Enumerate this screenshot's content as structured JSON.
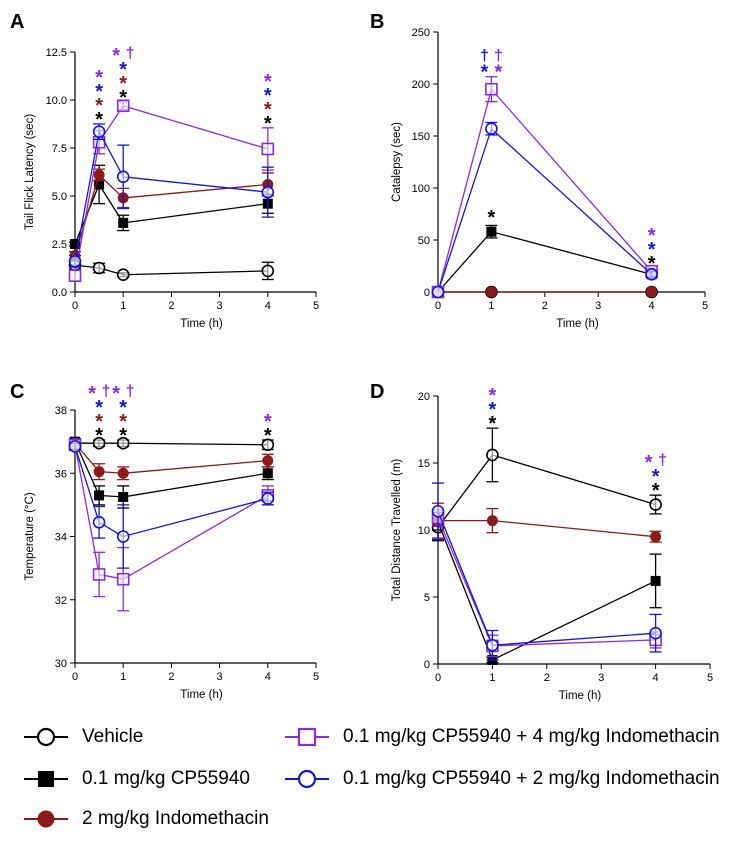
{
  "colors": {
    "vehicle": "#000000",
    "cp": "#000000",
    "indo": "#8b1a1a",
    "cp_indo4": "#8a2be2",
    "cp_indo2": "#1515d8"
  },
  "legend": [
    {
      "key": "vehicle",
      "label": "Vehicle",
      "marker": "open-circle"
    },
    {
      "key": "cp",
      "label": "0.1 mg/kg CP55940",
      "marker": "filled-square"
    },
    {
      "key": "indo",
      "label": "2 mg/kg Indomethacin",
      "marker": "filled-circle"
    },
    {
      "key": "cp_indo4",
      "label": "0.1 mg/kg CP55940 + 4 mg/kg Indomethacin",
      "marker": "open-square"
    },
    {
      "key": "cp_indo2",
      "label": "0.1 mg/kg CP55940 + 2 mg/kg Indomethacin",
      "marker": "open-circle"
    }
  ],
  "chart_data": [
    {
      "panel": "A",
      "type": "line",
      "xlabel": "Time (h)",
      "ylabel": "Tail Flick Latency (sec)",
      "xlim": [
        0,
        5
      ],
      "ylim": [
        0,
        12.5
      ],
      "xticks": [
        "0",
        "1",
        "2",
        "3",
        "4",
        "5"
      ],
      "yticks": [
        "0.0",
        "2.5",
        "5.0",
        "7.5",
        "10.0",
        "12.5"
      ],
      "x": [
        0,
        0.5,
        1,
        4
      ],
      "series": [
        {
          "key": "vehicle",
          "values": [
            1.4,
            1.25,
            0.9,
            1.1
          ],
          "errors": [
            0.2,
            0.25,
            0.1,
            0.45
          ]
        },
        {
          "key": "cp",
          "values": [
            2.5,
            5.6,
            3.6,
            4.6
          ],
          "errors": [
            0.1,
            1.0,
            0.4,
            0.5
          ]
        },
        {
          "key": "indo",
          "values": [
            1.9,
            6.1,
            4.9,
            5.6
          ],
          "errors": [
            0.2,
            0.3,
            0.5,
            0.6
          ]
        },
        {
          "key": "cp_indo4",
          "values": [
            0.85,
            7.8,
            9.7,
            7.45
          ],
          "errors": [
            0.3,
            0.6,
            0.2,
            1.1
          ]
        },
        {
          "key": "cp_indo2",
          "values": [
            1.6,
            8.35,
            6.0,
            5.2
          ],
          "errors": [
            0.3,
            0.4,
            1.65,
            1.3
          ]
        }
      ],
      "annotations": [
        {
          "x": 0.5,
          "symbols": [
            [
              "*",
              "cp_indo4"
            ],
            [
              "*",
              "cp_indo2"
            ],
            [
              "*",
              "indo"
            ],
            [
              "*",
              "cp"
            ]
          ]
        },
        {
          "x": 1,
          "symbols": [
            [
              "*",
              "cp_indo4",
              "†"
            ],
            [
              "*",
              "cp_indo2"
            ],
            [
              "*",
              "indo"
            ],
            [
              "*",
              "cp"
            ]
          ]
        },
        {
          "x": 4,
          "symbols": [
            [
              "*",
              "cp_indo4"
            ],
            [
              "*",
              "cp_indo2"
            ],
            [
              "*",
              "indo"
            ],
            [
              "*",
              "cp"
            ]
          ]
        }
      ]
    },
    {
      "panel": "B",
      "type": "line",
      "xlabel": "Time (h)",
      "ylabel": "Catalepsy (sec)",
      "xlim": [
        0,
        5
      ],
      "ylim": [
        0,
        250
      ],
      "xticks": [
        "0",
        "1",
        "2",
        "3",
        "4",
        "5"
      ],
      "yticks": [
        "0",
        "50",
        "100",
        "150",
        "200",
        "250"
      ],
      "x": [
        0,
        1,
        4
      ],
      "series": [
        {
          "key": "vehicle",
          "values": [
            0,
            0,
            0
          ],
          "errors": [
            0,
            0,
            0
          ]
        },
        {
          "key": "cp",
          "values": [
            0,
            58,
            17
          ],
          "errors": [
            0,
            6,
            3
          ]
        },
        {
          "key": "indo",
          "values": [
            0,
            0,
            0
          ],
          "errors": [
            0,
            0,
            0
          ]
        },
        {
          "key": "cp_indo4",
          "values": [
            0,
            195,
            20
          ],
          "errors": [
            0,
            12,
            3
          ]
        },
        {
          "key": "cp_indo2",
          "values": [
            0,
            157,
            17
          ],
          "errors": [
            0,
            6,
            3
          ]
        }
      ],
      "annotations": [
        {
          "x": 1,
          "symbols": [
            [
              "†",
              "cp_indo2",
              "†",
              "cp_indo4"
            ],
            [
              "*",
              "cp_indo2",
              "*",
              "cp_indo4"
            ]
          ]
        },
        {
          "x": 1,
          "symbols": [
            [
              "*",
              "cp"
            ]
          ],
          "y": 75
        },
        {
          "x": 4,
          "symbols": [
            [
              "*",
              "cp_indo4"
            ],
            [
              "*",
              "cp_indo2"
            ],
            [
              "*",
              "cp"
            ]
          ]
        }
      ]
    },
    {
      "panel": "C",
      "type": "line",
      "xlabel": "Time (h)",
      "ylabel": "Temperature (°C)",
      "xlim": [
        0,
        5
      ],
      "ylim": [
        30,
        38
      ],
      "xticks": [
        "0",
        "1",
        "2",
        "3",
        "4",
        "5"
      ],
      "yticks": [
        "30",
        "32",
        "34",
        "36",
        "38"
      ],
      "x": [
        0,
        0.5,
        1,
        4
      ],
      "series": [
        {
          "key": "vehicle",
          "values": [
            36.95,
            36.95,
            36.95,
            36.9
          ],
          "errors": [
            0.1,
            0.1,
            0.1,
            0.15
          ]
        },
        {
          "key": "cp",
          "values": [
            37.0,
            35.3,
            35.25,
            36.0
          ],
          "errors": [
            0.1,
            0.3,
            0.35,
            0.2
          ]
        },
        {
          "key": "indo",
          "values": [
            36.95,
            36.05,
            36.0,
            36.4
          ],
          "errors": [
            0.1,
            0.25,
            0.2,
            0.2
          ]
        },
        {
          "key": "cp_indo4",
          "values": [
            36.9,
            32.8,
            32.65,
            35.3
          ],
          "errors": [
            0.1,
            0.7,
            1.0,
            0.3
          ]
        },
        {
          "key": "cp_indo2",
          "values": [
            36.85,
            34.45,
            34.0,
            35.2
          ],
          "errors": [
            0.1,
            0.5,
            1.0,
            0.2
          ]
        }
      ],
      "annotations": [
        {
          "x": 0.5,
          "symbols": [
            [
              "*",
              "cp_indo4",
              "†"
            ],
            [
              "*",
              "cp_indo2"
            ],
            [
              "*",
              "indo"
            ],
            [
              "*",
              "cp"
            ]
          ]
        },
        {
          "x": 1,
          "symbols": [
            [
              "*",
              "cp_indo4",
              "†"
            ],
            [
              "*",
              "cp_indo2"
            ],
            [
              "*",
              "indo"
            ],
            [
              "*",
              "cp"
            ]
          ]
        },
        {
          "x": 4,
          "symbols": [
            [
              "*",
              "cp_indo4"
            ],
            [
              "*",
              "cp"
            ]
          ]
        }
      ]
    },
    {
      "panel": "D",
      "type": "line",
      "xlabel": "Time (h)",
      "ylabel": "Total Distance Travelled (m)",
      "xlim": [
        0,
        5
      ],
      "ylim": [
        0,
        20
      ],
      "xticks": [
        "0",
        "1",
        "2",
        "3",
        "4",
        "5"
      ],
      "yticks": [
        "0",
        "5",
        "10",
        "15",
        "20"
      ],
      "x": [
        0,
        1,
        4
      ],
      "series": [
        {
          "key": "vehicle",
          "values": [
            10.2,
            15.6,
            11.9
          ],
          "errors": [
            1.0,
            2.0,
            0.7
          ]
        },
        {
          "key": "cp",
          "values": [
            10.6,
            0.3,
            6.2
          ],
          "errors": [
            0.6,
            0.2,
            2.0
          ]
        },
        {
          "key": "indo",
          "values": [
            10.7,
            10.7,
            9.5
          ],
          "errors": [
            1.3,
            0.9,
            0.4
          ]
        },
        {
          "key": "cp_indo4",
          "values": [
            10.9,
            1.35,
            1.8
          ],
          "errors": [
            0.6,
            0.8,
            0.6
          ]
        },
        {
          "key": "cp_indo2",
          "values": [
            11.4,
            1.4,
            2.3
          ],
          "errors": [
            2.1,
            1.1,
            1.4
          ]
        }
      ],
      "annotations": [
        {
          "x": 1,
          "symbols": [
            [
              "*",
              "cp_indo4"
            ],
            [
              "*",
              "cp_indo2"
            ],
            [
              "*",
              "cp"
            ]
          ]
        },
        {
          "x": 4,
          "symbols": [
            [
              "*",
              "cp_indo4",
              "†"
            ],
            [
              "*",
              "cp_indo2"
            ],
            [
              "*",
              "cp"
            ]
          ]
        }
      ]
    }
  ]
}
